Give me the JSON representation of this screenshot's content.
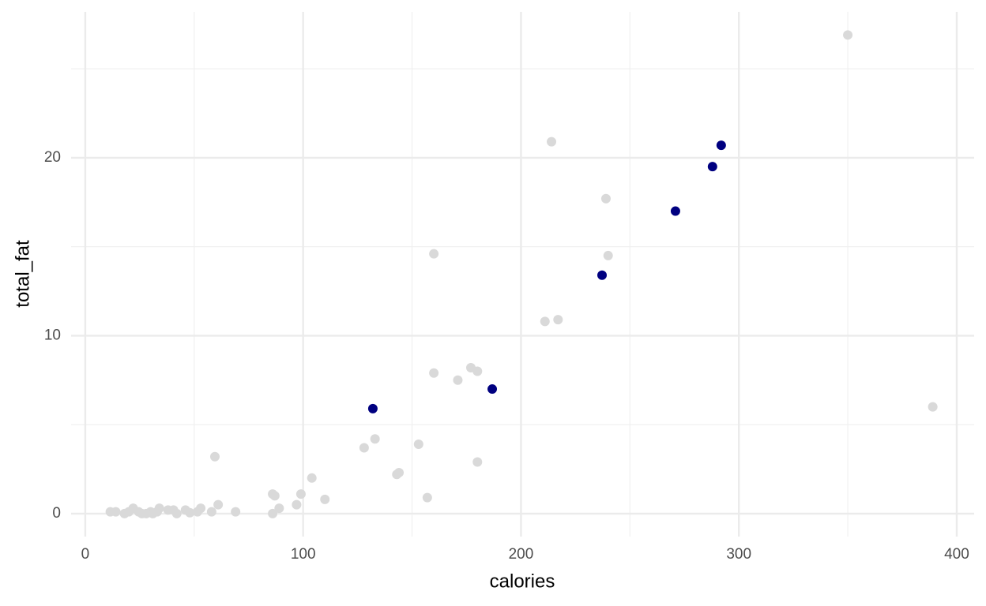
{
  "chart_data": {
    "type": "scatter",
    "x_label": "calories",
    "y_label": "total_fat",
    "xlim": [
      -6.5,
      408
    ],
    "ylim": [
      -1.29,
      28.2
    ],
    "xticks": [
      0,
      100,
      200,
      300,
      400
    ],
    "yticks": [
      0,
      10,
      20
    ],
    "x_minor_ticks": [
      50,
      150,
      250,
      350
    ],
    "y_minor_ticks": [
      5,
      15,
      25
    ],
    "grid": true,
    "series": [
      {
        "color": "#d9d9d9",
        "x": [
          350,
          389,
          214,
          239,
          240,
          160,
          211,
          217,
          160,
          177,
          180,
          171,
          133,
          128,
          153,
          180,
          143,
          144,
          157,
          104,
          110,
          99,
          97,
          89,
          86,
          87,
          86,
          59.5,
          61,
          69,
          58,
          53,
          51.5,
          48,
          46,
          42,
          40.5,
          38,
          34,
          33,
          31,
          30,
          28,
          26,
          24.5,
          22,
          20,
          18,
          14,
          11.5
        ],
        "values": [
          26.9,
          6.0,
          20.9,
          17.7,
          14.5,
          14.6,
          10.8,
          10.9,
          7.9,
          8.2,
          8.0,
          7.5,
          4.2,
          3.7,
          3.9,
          2.9,
          2.2,
          2.3,
          0.9,
          2.0,
          0.8,
          1.1,
          0.5,
          0.3,
          1.1,
          1.0,
          0,
          3.2,
          0.5,
          0.1,
          0.1,
          0.3,
          0.1,
          0.05,
          0.2,
          0,
          0.2,
          0.2,
          0.3,
          0.1,
          0,
          0.1,
          0,
          0,
          0.1,
          0.3,
          0.1,
          0,
          0.1,
          0.1
        ]
      },
      {
        "color": "#000080",
        "x": [
          132,
          186.8,
          237.2,
          270.9,
          287.9,
          291.9
        ],
        "values": [
          5.9,
          7.0,
          13.4,
          17.0,
          19.5,
          20.7
        ]
      }
    ]
  }
}
